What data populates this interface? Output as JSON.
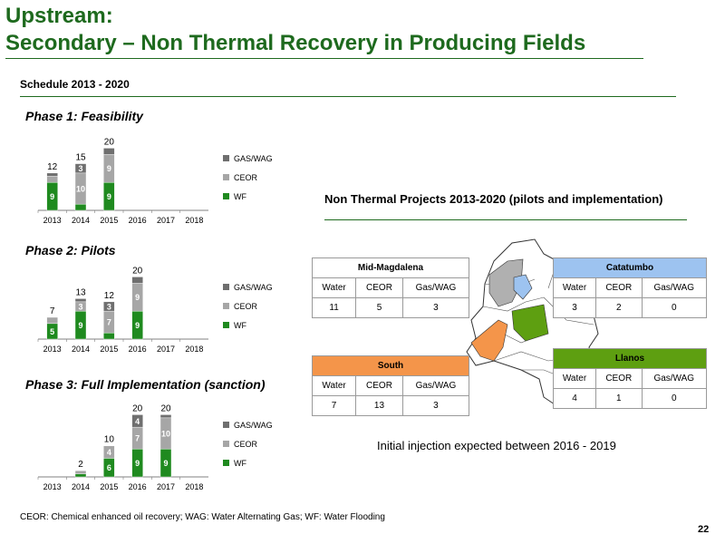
{
  "header": {
    "title_line1": "Upstream:",
    "title_line2": "Secondary – Non Thermal Recovery in Producing Fields",
    "schedule": "Schedule 2013 - 2020"
  },
  "colors": {
    "title_green": "#1e6a1e",
    "wf_green": "#1f8a1f",
    "ceor_gray": "#a6a6a6",
    "gaswag_gray": "#6f6f6f",
    "orange": "#f4954a",
    "blue": "#9dc3f0",
    "olive": "#5e9f11"
  },
  "chart_data": [
    {
      "type": "bar",
      "title": "Phase 1: Feasibility",
      "categories": [
        "2013",
        "2014",
        "2015",
        "2016",
        "2017",
        "2018"
      ],
      "series": [
        {
          "name": "WF",
          "values": [
            9,
            2,
            9,
            0,
            0,
            0
          ]
        },
        {
          "name": "CEOR",
          "values": [
            2,
            10,
            9,
            0,
            0,
            0
          ]
        },
        {
          "name": "GAS/WAG",
          "values": [
            1,
            3,
            2,
            0,
            0,
            0
          ]
        }
      ],
      "totals": [
        12,
        15,
        20,
        null,
        null,
        null
      ],
      "ylim": [
        0,
        21
      ],
      "legend": "right"
    },
    {
      "type": "bar",
      "title": "Phase 2: Pilots",
      "categories": [
        "2013",
        "2014",
        "2015",
        "2016",
        "2017",
        "2018"
      ],
      "series": [
        {
          "name": "WF",
          "values": [
            5,
            9,
            2,
            9,
            0,
            0
          ]
        },
        {
          "name": "CEOR",
          "values": [
            2,
            3,
            7,
            9,
            0,
            0
          ]
        },
        {
          "name": "GAS/WAG",
          "values": [
            0,
            1,
            3,
            2,
            0,
            0
          ]
        }
      ],
      "totals": [
        7,
        13,
        12,
        20,
        null,
        null
      ],
      "ylim": [
        0,
        21
      ],
      "legend": "right"
    },
    {
      "type": "bar",
      "title": "Phase 3: Full Implementation (sanction)",
      "categories": [
        "2013",
        "2014",
        "2015",
        "2016",
        "2017",
        "2018"
      ],
      "series": [
        {
          "name": "WF",
          "values": [
            0,
            1,
            6,
            9,
            9,
            0
          ]
        },
        {
          "name": "CEOR",
          "values": [
            0,
            1,
            4,
            7,
            10,
            0
          ]
        },
        {
          "name": "GAS/WAG",
          "values": [
            0,
            0,
            0,
            4,
            1,
            0
          ]
        }
      ],
      "totals": [
        null,
        2,
        10,
        20,
        20,
        null
      ],
      "ylim": [
        0,
        21
      ],
      "legend": "right"
    }
  ],
  "projects": {
    "title": "Non Thermal Projects 2013-2020 (pilots and implementation)",
    "columns": [
      "Water",
      "CEOR",
      "Gas/WAG"
    ],
    "regions": [
      {
        "name": "Mid-Magdalena",
        "values": [
          "11",
          "5",
          "3"
        ],
        "header_color": "#ffffff"
      },
      {
        "name": "Catatumbo",
        "values": [
          "3",
          "2",
          "0"
        ],
        "header_color": "#9dc3f0"
      },
      {
        "name": "South",
        "values": [
          "7",
          "13",
          "3"
        ],
        "header_color": "#f4954a"
      },
      {
        "name": "Llanos",
        "values": [
          "4",
          "1",
          "0"
        ],
        "header_color": "#5e9f11"
      }
    ],
    "injection_note": "Initial injection expected between 2016 - 2019"
  },
  "footer": {
    "footnote": "CEOR: Chemical enhanced oil recovery; WAG: Water Alternating Gas; WF: Water Flooding",
    "page_number": "22"
  }
}
